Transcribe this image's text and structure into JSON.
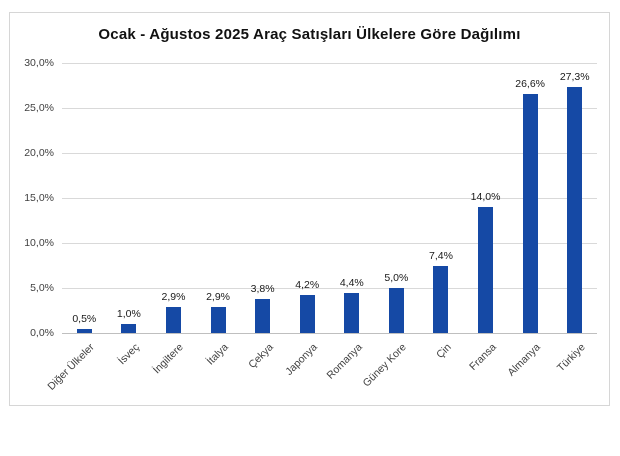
{
  "chart_data": {
    "type": "bar",
    "title": "Ocak - Ağustos 2025 Araç Satışları Ülkelere Göre Dağılımı",
    "categories": [
      "Diğer Ülkeler",
      "İsveç",
      "İngiltere",
      "İtalya",
      "Çekya",
      "Japonya",
      "Romanya",
      "Güney Kore",
      "Çin",
      "Fransa",
      "Almanya",
      "Türkiye"
    ],
    "values": [
      0.5,
      1.0,
      2.9,
      2.9,
      3.8,
      4.2,
      4.4,
      5.0,
      7.4,
      14.0,
      26.6,
      27.3
    ],
    "data_labels": [
      "0,5%",
      "1,0%",
      "2,9%",
      "2,9%",
      "3,8%",
      "4,2%",
      "4,4%",
      "5,0%",
      "7,4%",
      "14,0%",
      "26,6%",
      "27,3%"
    ],
    "y_ticks": [
      "0,0%",
      "5,0%",
      "10,0%",
      "15,0%",
      "20,0%",
      "25,0%",
      "30,0%"
    ],
    "ylim": [
      0,
      30
    ],
    "y_step": 5,
    "xlabel": "",
    "ylabel": "",
    "grid": true,
    "legend": "none",
    "bar_color": "#1549a5",
    "gridline_color": "#d9d9d9",
    "axis_line_color": "#bfbfbf",
    "tick_label_color": "#404040",
    "title_color": "#111111"
  }
}
